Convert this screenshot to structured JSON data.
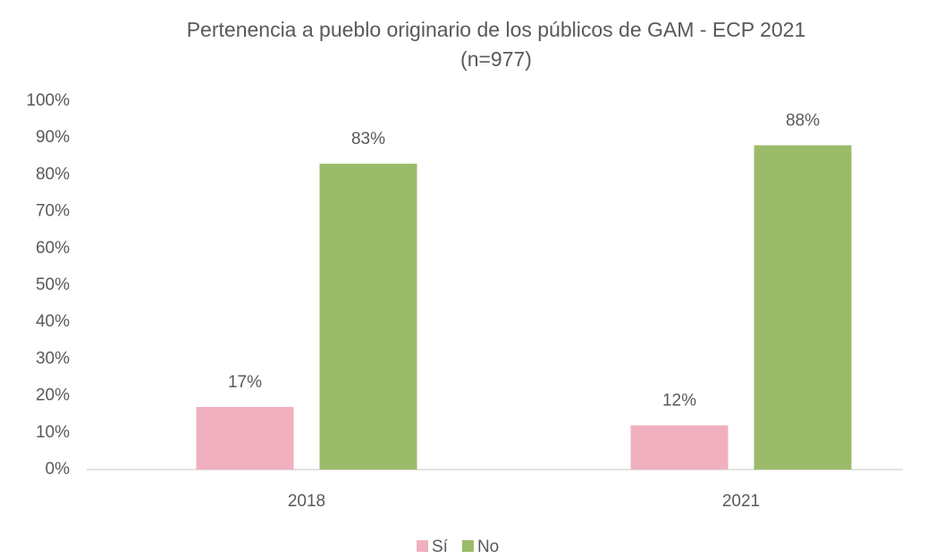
{
  "chart_data": {
    "type": "bar",
    "title": "Pertenencia a pueblo originario de los públicos de GAM - ECP 2021",
    "subtitle": "(n=977)",
    "categories": [
      "2018",
      "2021"
    ],
    "series": [
      {
        "name": "Sí",
        "color": "#f0b0bf",
        "values": [
          17,
          12
        ],
        "value_labels": [
          "17%",
          "12%"
        ]
      },
      {
        "name": "No",
        "color": "#9bbb6a",
        "values": [
          83,
          88
        ],
        "value_labels": [
          "83%",
          "88%"
        ]
      }
    ],
    "ylim": [
      0,
      100
    ],
    "yticks": [
      {
        "value": 0,
        "label": "0%"
      },
      {
        "value": 10,
        "label": "10%"
      },
      {
        "value": 20,
        "label": "20%"
      },
      {
        "value": 30,
        "label": "30%"
      },
      {
        "value": 40,
        "label": "40%"
      },
      {
        "value": 50,
        "label": "50%"
      },
      {
        "value": 60,
        "label": "60%"
      },
      {
        "value": 70,
        "label": "70%"
      },
      {
        "value": 80,
        "label": "80%"
      },
      {
        "value": 90,
        "label": "90%"
      },
      {
        "value": 100,
        "label": "100%"
      }
    ],
    "grid": false,
    "legend": "bottom"
  }
}
